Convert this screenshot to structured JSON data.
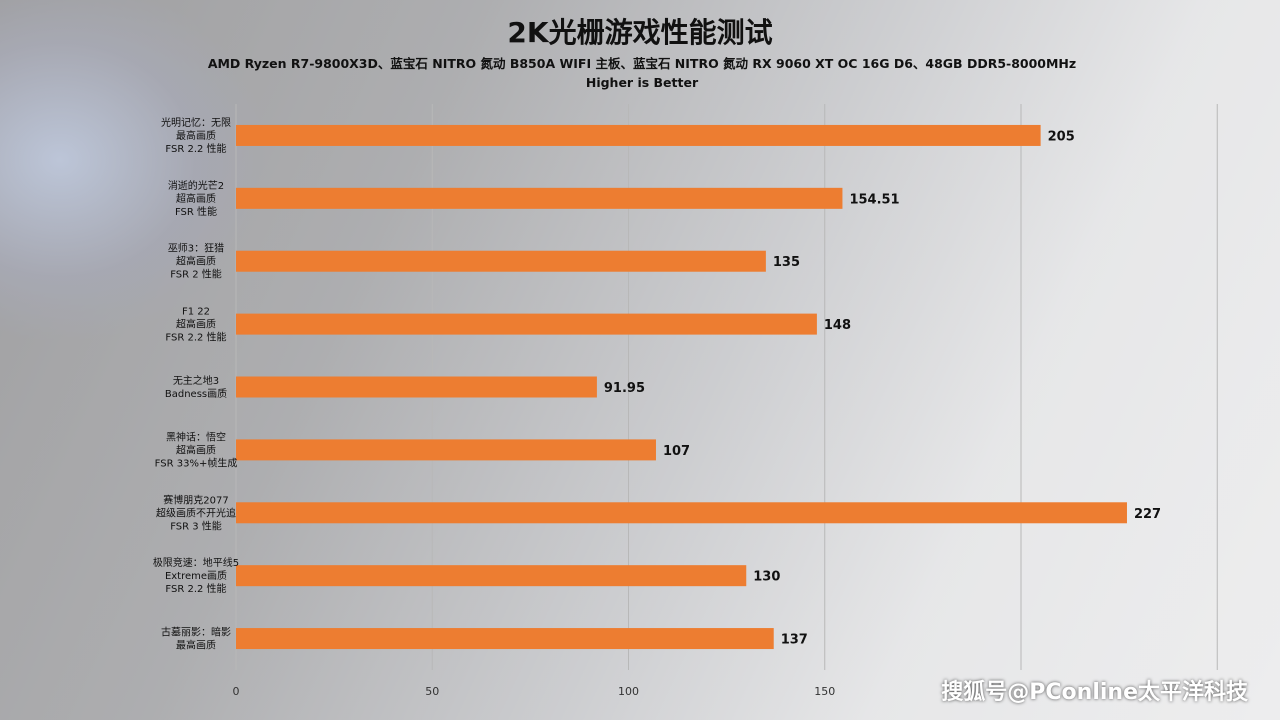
{
  "chart_data": {
    "type": "bar",
    "orientation": "horizontal",
    "title": "2K光栅游戏性能测试",
    "subtitle_lines": [
      "AMD Ryzen R7-9800X3D、蓝宝石 NITRO 氮动 B850A WIFI 主板、蓝宝石 NITRO 氮动 RX 9060 XT OC 16G D6、48GB DDR5-8000MHz",
      "Higher is Better"
    ],
    "categories": [
      [
        "光明记忆：无限",
        "最高画质",
        "FSR 2.2 性能"
      ],
      [
        "消逝的光芒2",
        "超高画质",
        "FSR 性能"
      ],
      [
        "巫师3：狂猎",
        "超高画质",
        "FSR 2 性能"
      ],
      [
        "F1 22",
        "超高画质",
        "FSR 2.2 性能"
      ],
      [
        "无主之地3",
        "Badness画质"
      ],
      [
        "黑神话：悟空",
        "超高画质",
        "FSR 33%+帧生成"
      ],
      [
        "赛博朋克2077",
        "超级画质不开光追",
        "FSR 3 性能"
      ],
      [
        "极限竞速：地平线5",
        "Extreme画质",
        "FSR 2.2 性能"
      ],
      [
        "古墓丽影：暗影",
        "最高画质"
      ]
    ],
    "values": [
      205,
      154.51,
      135,
      148,
      91.95,
      107,
      227,
      130,
      137
    ],
    "value_labels": [
      "205",
      "154.51",
      "135",
      "148",
      "91.95",
      "107",
      "227",
      "130",
      "137"
    ],
    "xlim": [
      0,
      250
    ],
    "ticks": [
      0,
      50,
      100,
      150
    ],
    "grid": true,
    "bar_color": "#ed7d31"
  },
  "watermark": "搜狐号@PConline太平洋科技"
}
